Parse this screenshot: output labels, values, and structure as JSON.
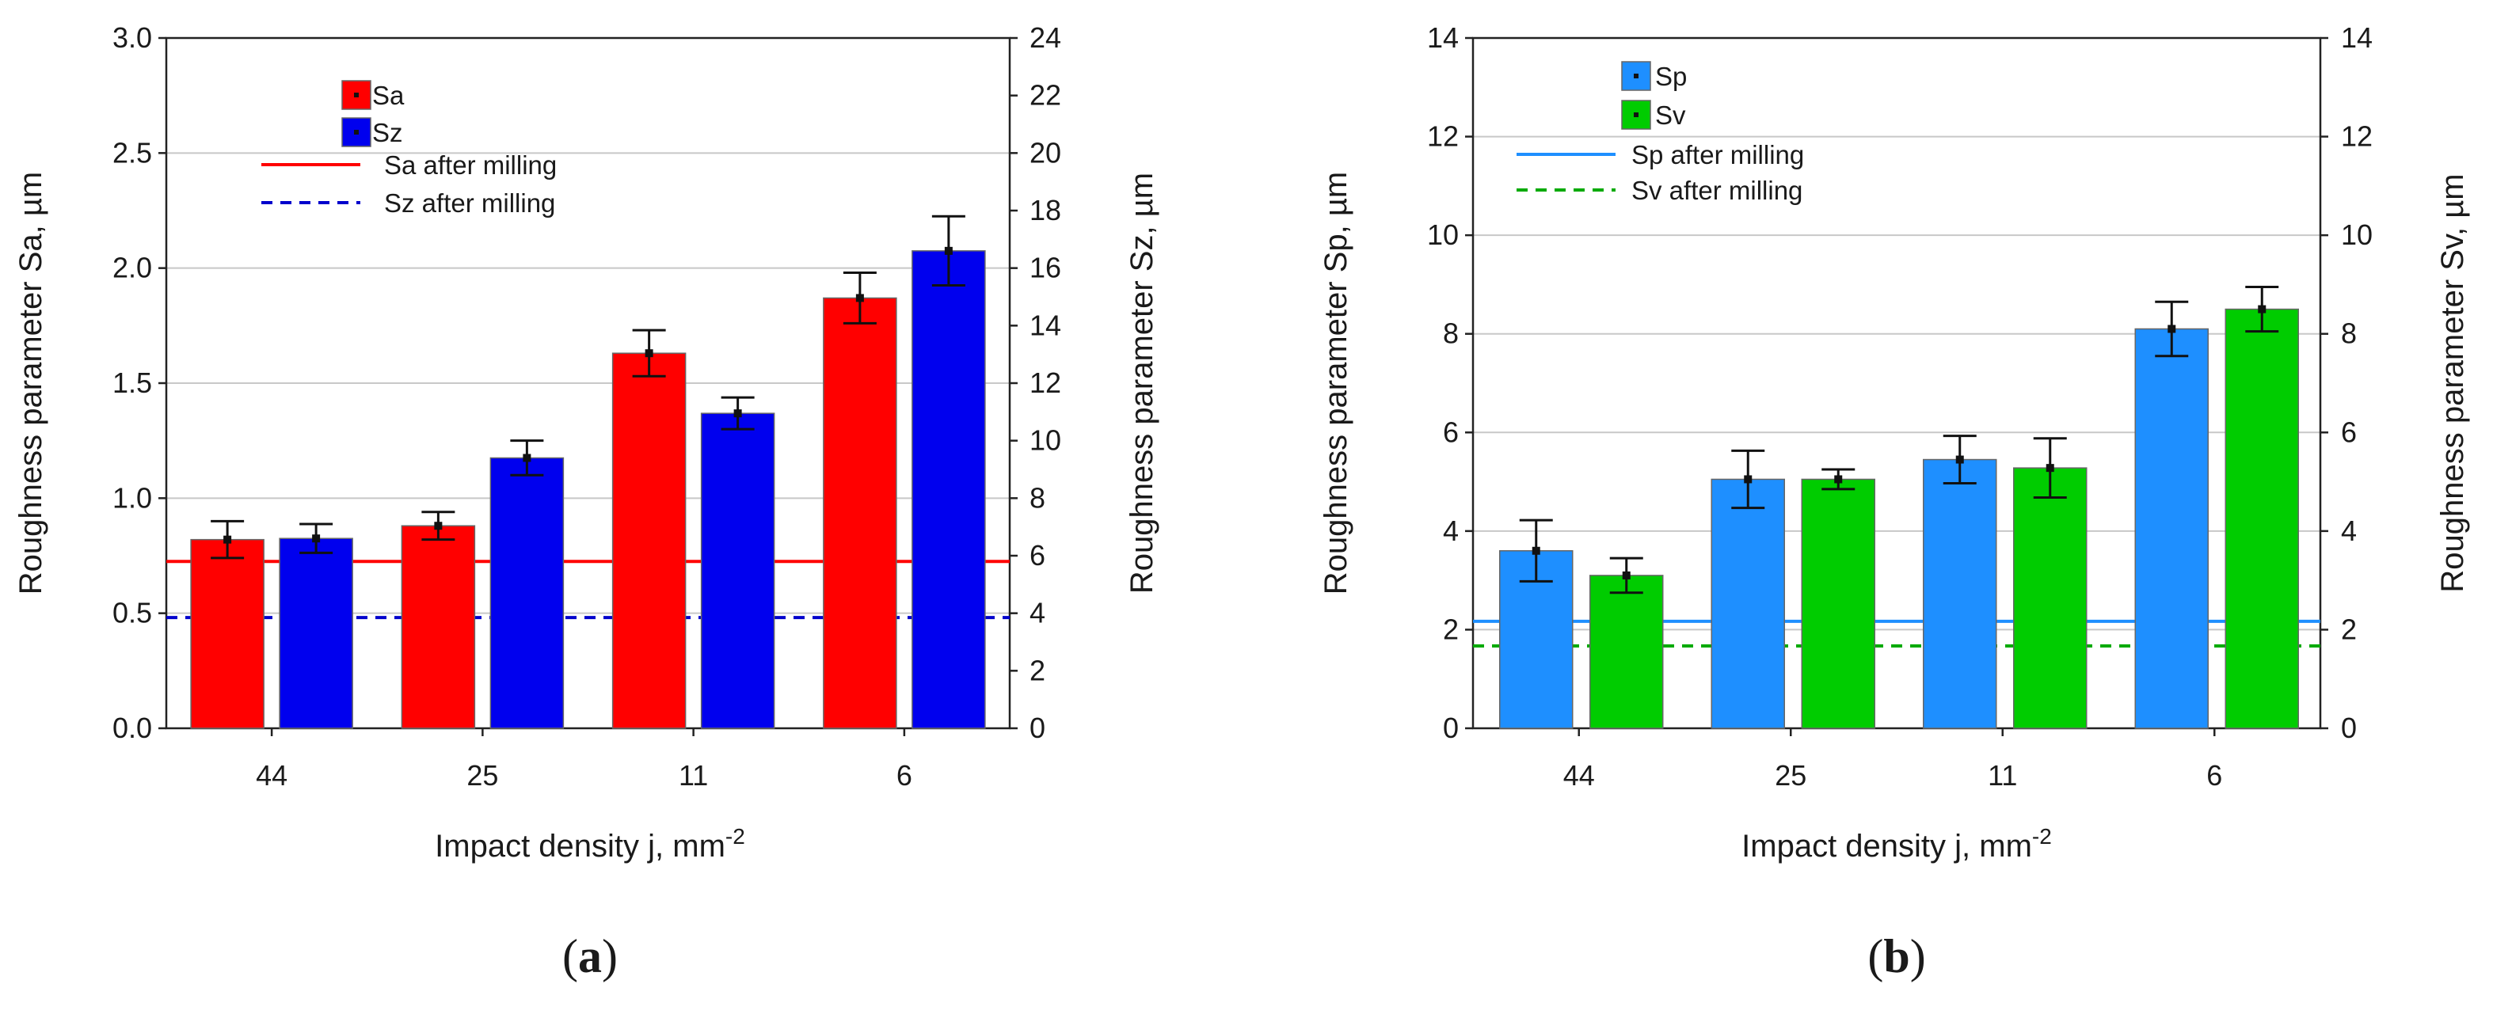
{
  "chart_data": [
    {
      "type": "bar",
      "panel": "a",
      "panel_label": {
        "open": "(",
        "letter": "a",
        "close": ")"
      },
      "xlabel": {
        "text": "Impact density j, mm",
        "sup": "-2"
      },
      "ylabel_left": "Roughness parameter Sa, µm",
      "ylabel_right": "Roughness parameter Sz, µm",
      "categories": [
        "44",
        "25",
        "11",
        "6"
      ],
      "y_left": {
        "min": 0,
        "max": 3.0,
        "ticks": [
          "0.0",
          "0.5",
          "1.0",
          "1.5",
          "2.0",
          "2.5",
          "3.0"
        ],
        "tick_values": [
          0,
          0.5,
          1.0,
          1.5,
          2.0,
          2.5,
          3.0
        ]
      },
      "y_right": {
        "min": 0,
        "max": 24,
        "ticks": [
          "0",
          "2",
          "4",
          "6",
          "8",
          "10",
          "12",
          "14",
          "16",
          "18",
          "20",
          "22",
          "24"
        ],
        "tick_values": [
          0,
          2,
          4,
          6,
          8,
          10,
          12,
          14,
          16,
          18,
          20,
          22,
          24
        ]
      },
      "gridlines": true,
      "series": [
        {
          "name": "Sa",
          "axis": "left",
          "color": "#ff0000",
          "values": [
            0.82,
            0.88,
            1.63,
            1.87
          ],
          "errors": [
            0.08,
            0.06,
            0.1,
            0.11
          ]
        },
        {
          "name": "Sz",
          "axis": "right",
          "color": "#0000ee",
          "values": [
            6.6,
            9.4,
            10.95,
            16.6
          ],
          "errors": [
            0.5,
            0.6,
            0.55,
            1.2
          ]
        }
      ],
      "reference_lines": [
        {
          "name": "Sa after milling",
          "axis": "left",
          "value": 0.725,
          "color": "#ff0000",
          "style": "solid"
        },
        {
          "name": "Sz after milling",
          "axis": "right",
          "value": 3.85,
          "color": "#0000cc",
          "style": "dashed"
        }
      ],
      "legend": [
        "Sa",
        "Sz",
        "Sa after milling",
        "Sz after milling"
      ]
    },
    {
      "type": "bar",
      "panel": "b",
      "panel_label": {
        "open": "(",
        "letter": "b",
        "close": ")"
      },
      "xlabel": {
        "text": "Impact density j, mm",
        "sup": "-2"
      },
      "ylabel_left": "Roughness parameter Sp, µm",
      "ylabel_right": "Roughness parameter Sv, µm",
      "categories": [
        "44",
        "25",
        "11",
        "6"
      ],
      "y_left": {
        "min": 0,
        "max": 14,
        "ticks": [
          "0",
          "2",
          "4",
          "6",
          "8",
          "10",
          "12",
          "14"
        ],
        "tick_values": [
          0,
          2,
          4,
          6,
          8,
          10,
          12,
          14
        ]
      },
      "y_right": {
        "min": 0,
        "max": 14,
        "ticks": [
          "0",
          "2",
          "4",
          "6",
          "8",
          "10",
          "12",
          "14"
        ],
        "tick_values": [
          0,
          2,
          4,
          6,
          8,
          10,
          12,
          14
        ]
      },
      "gridlines": true,
      "series": [
        {
          "name": "Sp",
          "axis": "left",
          "color": "#1e8fff",
          "values": [
            3.6,
            5.05,
            5.45,
            8.1
          ],
          "errors": [
            0.62,
            0.58,
            0.48,
            0.55
          ]
        },
        {
          "name": "Sv",
          "axis": "right",
          "color": "#00cc00",
          "values": [
            3.1,
            5.05,
            5.28,
            8.5
          ],
          "errors": [
            0.35,
            0.2,
            0.6,
            0.45
          ]
        }
      ],
      "reference_lines": [
        {
          "name": "Sp after milling",
          "axis": "left",
          "value": 2.17,
          "color": "#1e8fff",
          "style": "solid"
        },
        {
          "name": "Sv after milling",
          "axis": "right",
          "value": 1.67,
          "color": "#00aa00",
          "style": "dashed"
        }
      ],
      "legend": [
        "Sp",
        "Sv",
        "Sp after milling",
        "Sv after milling"
      ]
    }
  ]
}
